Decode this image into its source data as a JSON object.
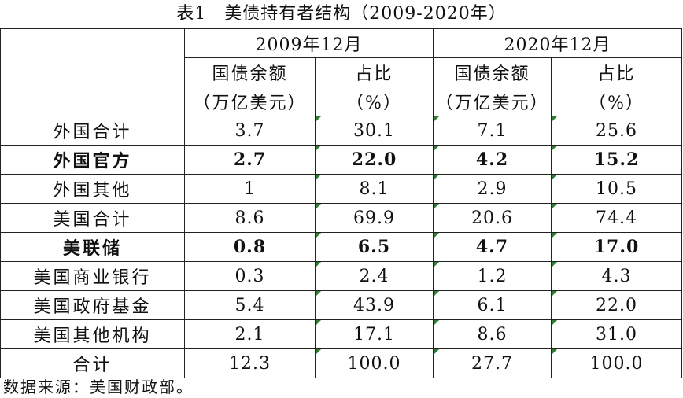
{
  "title": "表1　美债持有者结构（2009-2020年）",
  "header": {
    "periods": [
      "2009年12月",
      "2020年12月"
    ],
    "col_label_1": "国债余额",
    "col_label_2": "占比",
    "unit_1": "（万亿美元）",
    "unit_2": "（%）"
  },
  "rows": [
    {
      "label": "外国合计",
      "v": [
        "3.7",
        "30.1",
        "7.1",
        "25.6"
      ]
    },
    {
      "label": "外国官方",
      "v": [
        "2.7",
        "22.0",
        "4.2",
        "15.2"
      ]
    },
    {
      "label": "外国其他",
      "v": [
        "1",
        "8.1",
        "2.9",
        "10.5"
      ]
    },
    {
      "label": "美国合计",
      "v": [
        "8.6",
        "69.9",
        "20.6",
        "74.4"
      ]
    },
    {
      "label": "美联储",
      "v": [
        "0.8",
        "6.5",
        "4.7",
        "17.0"
      ]
    },
    {
      "label": "美国商业银行",
      "v": [
        "0.3",
        "2.4",
        "1.2",
        "4.3"
      ]
    },
    {
      "label": "美国政府基金",
      "v": [
        "5.4",
        "43.9",
        "6.1",
        "22.0"
      ]
    },
    {
      "label": "美国其他机构",
      "v": [
        "2.1",
        "17.1",
        "8.6",
        "31.0"
      ]
    },
    {
      "label": "合计",
      "v": [
        "12.3",
        "100.0",
        "27.7",
        "100.0"
      ]
    }
  ],
  "source": "数据来源：美国财政部。",
  "colors": {
    "marker": "#2e7d32",
    "border": "#222222",
    "text": "#111111"
  }
}
